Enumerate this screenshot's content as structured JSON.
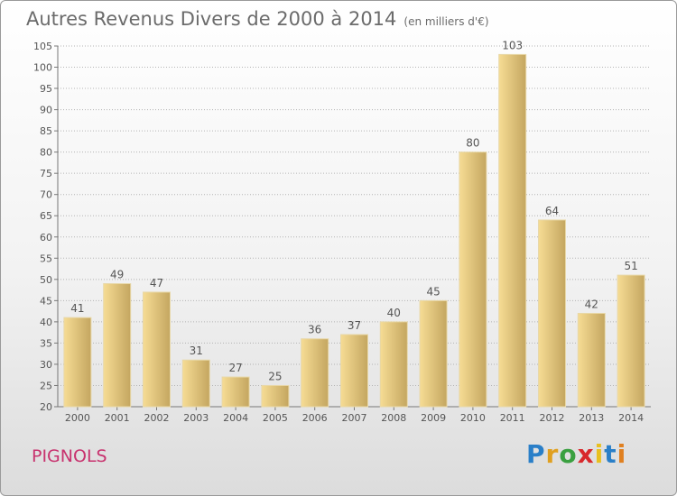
{
  "header": {
    "title": "Autres Revenus Divers de 2000 à 2014",
    "subtitle": "(en milliers d'€)"
  },
  "footer": {
    "place": "PIGNOLS",
    "logo_letters": [
      "P",
      "r",
      "o",
      "x",
      "i",
      "t",
      "i"
    ],
    "logo_colors": [
      "#2a7fc8",
      "#e0a020",
      "#3aa040",
      "#d8282c",
      "#e8c020",
      "#2a7fc8",
      "#e08020"
    ]
  },
  "colors": {
    "bar_light": "#f6dc94",
    "bar_dark": "#c4a660",
    "grid": "#b4b4b4",
    "text": "#555555"
  },
  "chart_data": {
    "type": "bar",
    "title": "Autres Revenus Divers de 2000 à 2014",
    "subtitle": "(en milliers d'€)",
    "categories": [
      "2000",
      "2001",
      "2002",
      "2003",
      "2004",
      "2005",
      "2006",
      "2007",
      "2008",
      "2009",
      "2010",
      "2011",
      "2012",
      "2013",
      "2014"
    ],
    "values": [
      41,
      49,
      47,
      31,
      27,
      25,
      36,
      37,
      40,
      45,
      80,
      103,
      64,
      42,
      51
    ],
    "ylim": [
      20,
      105
    ],
    "yticks": [
      20,
      25,
      30,
      35,
      40,
      45,
      50,
      55,
      60,
      65,
      70,
      75,
      80,
      85,
      90,
      95,
      100,
      105
    ],
    "grid": true,
    "xlabel": "",
    "ylabel": ""
  }
}
